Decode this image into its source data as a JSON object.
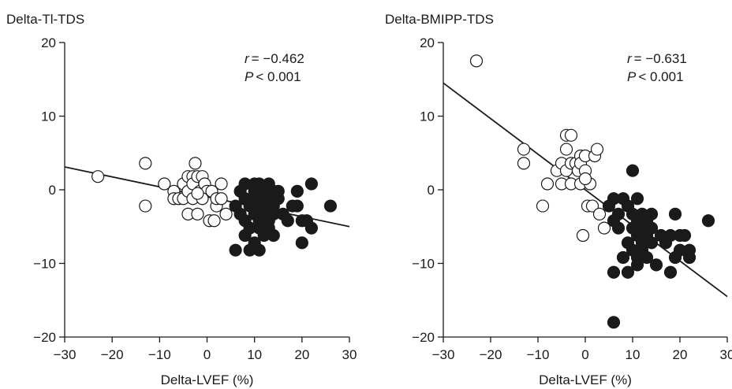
{
  "chart_data": [
    {
      "type": "scatter",
      "title": "Delta-Tl-TDS",
      "xlabel": "Delta-LVEF (%)",
      "ylabel": "",
      "xlim": [
        -30,
        30
      ],
      "ylim": [
        -20,
        20
      ],
      "xticks": [
        -30,
        -20,
        -10,
        0,
        10,
        20,
        30
      ],
      "yticks": [
        -20,
        -10,
        0,
        10,
        20
      ],
      "xtick_labels": [
        "−30",
        "−20",
        "−10",
        "0",
        "10",
        "20",
        "30"
      ],
      "ytick_labels": [
        "−20",
        "−10",
        "0",
        "10",
        "20"
      ],
      "stats": {
        "r_label": "r",
        "r_text": "= −0.462",
        "p_label": "P",
        "p_text": "< 0.001"
      },
      "regression": {
        "x": [
          -30,
          30
        ],
        "y": [
          3.1,
          -5.0
        ]
      },
      "series": [
        {
          "marker": "open-circle",
          "points": [
            [
              -23,
              1.8
            ],
            [
              -13,
              3.6
            ],
            [
              -13,
              -2.2
            ],
            [
              -9,
              0.8
            ],
            [
              -7,
              -0.2
            ],
            [
              -7,
              -1.2
            ],
            [
              -6,
              -1.2
            ],
            [
              -5,
              -1.2
            ],
            [
              -5,
              0.8
            ],
            [
              -4,
              -3.3
            ],
            [
              -4,
              -0.2
            ],
            [
              -4,
              1.8
            ],
            [
              -3,
              1.8
            ],
            [
              -3,
              0.8
            ],
            [
              -3,
              -1.2
            ],
            [
              -2.5,
              3.6
            ],
            [
              -2,
              1.8
            ],
            [
              -2,
              -3.3
            ],
            [
              -1.5,
              -0.2
            ],
            [
              -1,
              1.8
            ],
            [
              -0.5,
              0.8
            ],
            [
              0,
              -0.2
            ],
            [
              0.5,
              -4.2
            ],
            [
              1,
              -0.2
            ],
            [
              1.5,
              -4.2
            ],
            [
              2,
              -2.2
            ],
            [
              2,
              -1.2
            ],
            [
              3,
              0.8
            ],
            [
              3,
              -1.2
            ],
            [
              4,
              -3.3
            ],
            [
              -1,
              -1.2
            ],
            [
              -2,
              -0.5
            ]
          ]
        },
        {
          "marker": "filled-circle",
          "points": [
            [
              6,
              -2.2
            ],
            [
              6,
              -8.2
            ],
            [
              7,
              -0.2
            ],
            [
              7,
              -3.3
            ],
            [
              8,
              0.8
            ],
            [
              8,
              -1.2
            ],
            [
              8,
              -4.2
            ],
            [
              8,
              -6.2
            ],
            [
              9,
              -2.2
            ],
            [
              9,
              -5.2
            ],
            [
              9,
              -8.2
            ],
            [
              10,
              0.8
            ],
            [
              10,
              -0.2
            ],
            [
              10,
              -1.2
            ],
            [
              10,
              -2.2
            ],
            [
              10,
              -3.3
            ],
            [
              10,
              -7.2
            ],
            [
              11,
              0.8
            ],
            [
              11,
              -0.2
            ],
            [
              11,
              -1.2
            ],
            [
              11,
              -2.2
            ],
            [
              11,
              -3.3
            ],
            [
              11,
              -4.2
            ],
            [
              11,
              -5.2
            ],
            [
              11,
              -8.2
            ],
            [
              12,
              -0.2
            ],
            [
              12,
              -1.2
            ],
            [
              12,
              -2.2
            ],
            [
              12,
              -3.3
            ],
            [
              12,
              -4.2
            ],
            [
              12,
              -6.2
            ],
            [
              13,
              0.8
            ],
            [
              13,
              -1.2
            ],
            [
              13,
              -2.2
            ],
            [
              13,
              -3.3
            ],
            [
              13,
              -4.2
            ],
            [
              13,
              -5.2
            ],
            [
              14,
              -0.2
            ],
            [
              14,
              -2.2
            ],
            [
              14,
              -3.3
            ],
            [
              14,
              -6.2
            ],
            [
              15,
              -0.2
            ],
            [
              15,
              -1.2
            ],
            [
              16,
              -3.3
            ],
            [
              17,
              -4.2
            ],
            [
              18,
              -2.2
            ],
            [
              19,
              -0.2
            ],
            [
              19,
              -2.2
            ],
            [
              20,
              -4.2
            ],
            [
              20,
              -7.2
            ],
            [
              21,
              -4.2
            ],
            [
              22,
              0.8
            ],
            [
              22,
              -5.2
            ],
            [
              26,
              -2.2
            ]
          ]
        }
      ]
    },
    {
      "type": "scatter",
      "title": "Delta-BMIPP-TDS",
      "xlabel": "Delta-LVEF (%)",
      "ylabel": "",
      "xlim": [
        -30,
        30
      ],
      "ylim": [
        -20,
        20
      ],
      "xticks": [
        -30,
        -20,
        -10,
        0,
        10,
        20,
        30
      ],
      "yticks": [
        -20,
        -10,
        0,
        10,
        20
      ],
      "xtick_labels": [
        "−30",
        "−20",
        "−10",
        "0",
        "10",
        "20",
        "30"
      ],
      "ytick_labels": [
        "−20",
        "−10",
        "0",
        "10",
        "20"
      ],
      "stats": {
        "r_label": "r",
        "r_text": "= −0.631",
        "p_label": "P",
        "p_text": "< 0.001"
      },
      "regression": {
        "x": [
          -30,
          30
        ],
        "y": [
          14.5,
          -14.5
        ]
      },
      "series": [
        {
          "marker": "open-circle",
          "points": [
            [
              -23,
              17.5
            ],
            [
              -13,
              5.5
            ],
            [
              -13,
              3.6
            ],
            [
              -9,
              -2.2
            ],
            [
              -8,
              0.8
            ],
            [
              -6,
              2.6
            ],
            [
              -5,
              3.6
            ],
            [
              -5,
              0.8
            ],
            [
              -4,
              7.4
            ],
            [
              -4,
              5.5
            ],
            [
              -4,
              2.6
            ],
            [
              -3,
              7.4
            ],
            [
              -3,
              3.6
            ],
            [
              -3,
              0.8
            ],
            [
              -2,
              3.6
            ],
            [
              -1.5,
              2.6
            ],
            [
              -1,
              4.6
            ],
            [
              -1,
              3.6
            ],
            [
              -1,
              0.8
            ],
            [
              0,
              4.6
            ],
            [
              0,
              2.6
            ],
            [
              0.5,
              -2.2
            ],
            [
              1,
              0.8
            ],
            [
              1.5,
              -2.2
            ],
            [
              2,
              4.6
            ],
            [
              2.5,
              5.5
            ],
            [
              3,
              -3.3
            ],
            [
              4,
              -5.2
            ],
            [
              -0.5,
              -6.2
            ],
            [
              0,
              1.5
            ]
          ]
        },
        {
          "marker": "filled-circle",
          "points": [
            [
              6,
              -18.0
            ],
            [
              5,
              -2.2
            ],
            [
              6,
              -1.2
            ],
            [
              6,
              -4.2
            ],
            [
              6,
              -11.2
            ],
            [
              7,
              -3.3
            ],
            [
              7,
              -5.2
            ],
            [
              8,
              -9.2
            ],
            [
              8,
              -1.2
            ],
            [
              9,
              -2.2
            ],
            [
              9,
              -11.2
            ],
            [
              9,
              -7.2
            ],
            [
              10,
              2.6
            ],
            [
              10,
              -3.3
            ],
            [
              10,
              -5.2
            ],
            [
              10,
              -8.2
            ],
            [
              11,
              -1.2
            ],
            [
              11,
              -4.2
            ],
            [
              11,
              -6.2
            ],
            [
              11,
              -9.2
            ],
            [
              11,
              -10.2
            ],
            [
              12,
              -3.3
            ],
            [
              12,
              -5.2
            ],
            [
              12,
              -7.2
            ],
            [
              12,
              -8.2
            ],
            [
              13,
              -4.2
            ],
            [
              13,
              -6.2
            ],
            [
              13,
              -9.2
            ],
            [
              14,
              -3.3
            ],
            [
              14,
              -5.2
            ],
            [
              14,
              -7.2
            ],
            [
              15,
              -10.2
            ],
            [
              16,
              -6.2
            ],
            [
              17,
              -7.2
            ],
            [
              18,
              -11.2
            ],
            [
              18,
              -6.2
            ],
            [
              19,
              -3.3
            ],
            [
              19,
              -9.2
            ],
            [
              20,
              -6.2
            ],
            [
              20,
              -8.2
            ],
            [
              21,
              -6.2
            ],
            [
              22,
              -8.2
            ],
            [
              22,
              -9.2
            ],
            [
              26,
              -4.2
            ]
          ]
        }
      ]
    }
  ]
}
